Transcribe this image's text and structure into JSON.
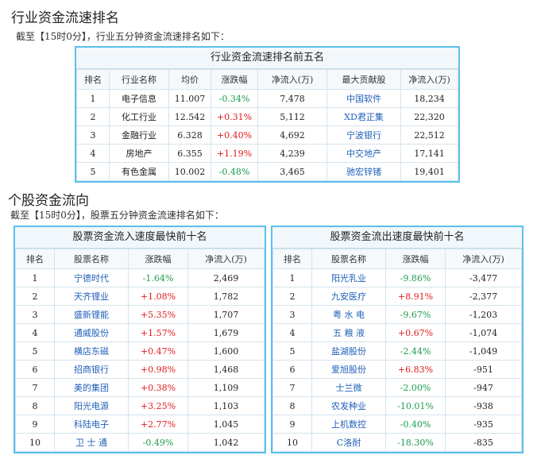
{
  "section1": {
    "title": "行业资金流速排名",
    "subtitle": "截至【15时0分】，行业五分钟资金流速排名如下：",
    "table": {
      "caption": "行业资金流速排名前五名",
      "headers": [
        "排名",
        "行业名称",
        "均价",
        "涨跌幅",
        "净流入(万)",
        "最大贡献股",
        "净流入(万)"
      ],
      "rows": [
        [
          "1",
          "电子信息",
          "11.007",
          "-0.34%",
          "7,478",
          "中国软件",
          "18,234"
        ],
        [
          "2",
          "化工行业",
          "12.542",
          "+0.31%",
          "5,112",
          "XD君正集",
          "22,320"
        ],
        [
          "3",
          "金融行业",
          "6.328",
          "+0.40%",
          "4,692",
          "宁波银行",
          "22,512"
        ],
        [
          "4",
          "房地产",
          "6.355",
          "+1.19%",
          "4,239",
          "中交地产",
          "17,141"
        ],
        [
          "5",
          "有色金属",
          "10.002",
          "-0.48%",
          "3,465",
          "驰宏锌锗",
          "19,401"
        ]
      ]
    }
  },
  "section2": {
    "title": "个股资金流向",
    "subtitle": "截至【15时0分】，股票五分钟资金流速排名如下：",
    "inflow": {
      "caption": "股票资金流入速度最快前十名",
      "headers": [
        "排名",
        "股票名称",
        "涨跌幅",
        "净流入(万)"
      ],
      "rows": [
        [
          "1",
          "宁德时代",
          "-1.64%",
          "2,469"
        ],
        [
          "2",
          "天齐锂业",
          "+1.08%",
          "1,782"
        ],
        [
          "3",
          "盛新锂能",
          "+5.35%",
          "1,707"
        ],
        [
          "4",
          "通威股份",
          "+1.57%",
          "1,679"
        ],
        [
          "5",
          "横店东磁",
          "+0.47%",
          "1,600"
        ],
        [
          "6",
          "招商银行",
          "+0.98%",
          "1,468"
        ],
        [
          "7",
          "美的集团",
          "+0.38%",
          "1,109"
        ],
        [
          "8",
          "阳光电源",
          "+3.25%",
          "1,103"
        ],
        [
          "9",
          "科陆电子",
          "+2.77%",
          "1,045"
        ],
        [
          "10",
          "卫 士 通",
          "-0.49%",
          "1,042"
        ]
      ]
    },
    "outflow": {
      "caption": "股票资金流出速度最快前十名",
      "headers": [
        "排名",
        "股票名称",
        "涨跌幅",
        "净流入(万)"
      ],
      "rows": [
        [
          "1",
          "阳光乳业",
          "-9.86%",
          "-3,477"
        ],
        [
          "2",
          "九安医疗",
          "+8.91%",
          "-2,377"
        ],
        [
          "3",
          "粤 水 电",
          "-9.67%",
          "-1,203"
        ],
        [
          "4",
          "五 粮 液",
          "+0.67%",
          "-1,074"
        ],
        [
          "5",
          "盐湖股份",
          "-2.44%",
          "-1,049"
        ],
        [
          "6",
          "爱旭股份",
          "+6.83%",
          "-951"
        ],
        [
          "7",
          "士兰微",
          "-2.00%",
          "-947"
        ],
        [
          "8",
          "农发种业",
          "-10.01%",
          "-938"
        ],
        [
          "9",
          "上机数控",
          "-0.40%",
          "-935"
        ],
        [
          "10",
          "C洛耐",
          "-18.30%",
          "-835"
        ]
      ]
    }
  },
  "colors": {
    "border": "#5bc0eb",
    "up": "#e21b1b",
    "down": "#1c9c4f",
    "link": "#1f5fb8"
  }
}
